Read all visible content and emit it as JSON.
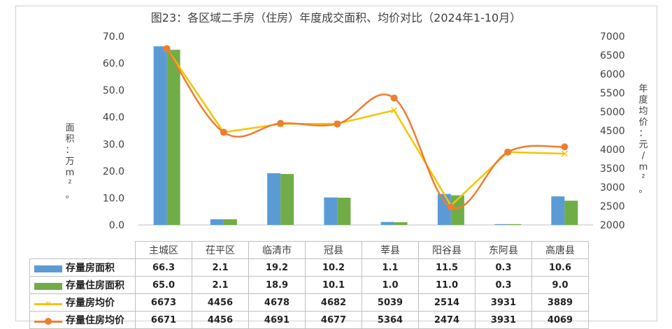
{
  "chart_data": {
    "type": "bar+line",
    "title": "图23：各区域二手房（住房）年度成交面积、均价对比（2024年1-10月）",
    "ylabel_left": "面积：万m²。",
    "ylabel_right": "年度均价：元/m²。",
    "categories": [
      "主城区",
      "茌平区",
      "临清市",
      "冠县",
      "莘县",
      "阳谷县",
      "东阿县",
      "高唐县"
    ],
    "ylim_left": [
      0,
      70
    ],
    "yticks_left": [
      "0.0",
      "10.0",
      "20.0",
      "30.0",
      "40.0",
      "50.0",
      "60.0",
      "70.0"
    ],
    "ylim_right": [
      2000,
      7000
    ],
    "yticks_right": [
      "2000",
      "2500",
      "3000",
      "3500",
      "4000",
      "4500",
      "5000",
      "5500",
      "6000",
      "6500",
      "7000"
    ],
    "series": [
      {
        "name": "存量房面积",
        "type": "bar",
        "axis": "left",
        "color": "#5b9bd5",
        "values": [
          66.3,
          2.1,
          19.2,
          10.2,
          1.1,
          11.5,
          0.3,
          10.6
        ],
        "labels": [
          "66.3",
          "2.1",
          "19.2",
          "10.2",
          "1.1",
          "11.5",
          "0.3",
          "10.6"
        ]
      },
      {
        "name": "存量住房面积",
        "type": "bar",
        "axis": "left",
        "color": "#70ad47",
        "values": [
          65.0,
          2.1,
          18.9,
          10.1,
          1.0,
          11.0,
          0.3,
          9.0
        ],
        "labels": [
          "65.0",
          "2.1",
          "18.9",
          "10.1",
          "1.0",
          "11.0",
          "0.3",
          "9.0"
        ]
      },
      {
        "name": "存量房均价",
        "type": "line",
        "axis": "right",
        "color": "#f5c400",
        "marker": "x",
        "values": [
          6673,
          4456,
          4678,
          4682,
          5039,
          2514,
          3931,
          3889
        ],
        "labels": [
          "6673",
          "4456",
          "4678",
          "4682",
          "5039",
          "2514",
          "3931",
          "3889"
        ]
      },
      {
        "name": "存量住房均价",
        "type": "line",
        "axis": "right",
        "color": "#ed7d31",
        "marker": "circle",
        "values": [
          6671,
          4456,
          4691,
          4677,
          5364,
          2474,
          3931,
          4069
        ],
        "labels": [
          "6671",
          "4456",
          "4691",
          "4677",
          "5364",
          "2474",
          "3931",
          "4069"
        ]
      }
    ],
    "grid": false,
    "legend": "data-table"
  }
}
